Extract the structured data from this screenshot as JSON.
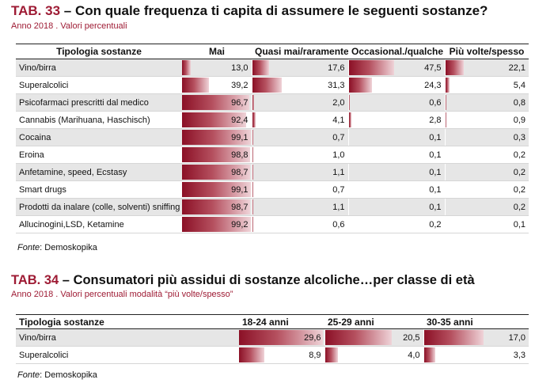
{
  "table1": {
    "code": "TAB. 33",
    "title": " – Con quale frequenza ti capita di assumere le seguenti sostanze?",
    "subtitle": "Anno 2018 . Valori percentuali",
    "headers": [
      "Tipologia sostanze",
      "Mai",
      "Quasi mai/raramente",
      "Occasional./qualche",
      "Più volte/spesso"
    ],
    "rows": [
      {
        "label": "Vino/birra",
        "values": [
          "13,0",
          "17,6",
          "47,5",
          "22,1"
        ],
        "pct": [
          13.0,
          17.6,
          47.5,
          22.1
        ]
      },
      {
        "label": "Superalcolici",
        "values": [
          "39,2",
          "31,3",
          "24,3",
          "5,4"
        ],
        "pct": [
          39.2,
          31.3,
          24.3,
          5.4
        ]
      },
      {
        "label": "Psicofarmaci prescritti dal medico",
        "values": [
          "96,7",
          "2,0",
          "0,6",
          "0,8"
        ],
        "pct": [
          96.7,
          2.0,
          0.6,
          0.8
        ]
      },
      {
        "label": "Cannabis (Marihuana, Haschisch)",
        "values": [
          "92,4",
          "4,1",
          "2,8",
          "0,9"
        ],
        "pct": [
          92.4,
          4.1,
          2.8,
          0.9
        ]
      },
      {
        "label": "Cocaina",
        "values": [
          "99,1",
          "0,7",
          "0,1",
          "0,3"
        ],
        "pct": [
          99.1,
          0.7,
          0.1,
          0.3
        ]
      },
      {
        "label": "Eroina",
        "values": [
          "98,8",
          "1,0",
          "0,1",
          "0,2"
        ],
        "pct": [
          98.8,
          1.0,
          0.1,
          0.2
        ]
      },
      {
        "label": "Anfetamine, speed, Ecstasy",
        "values": [
          "98,7",
          "1,1",
          "0,1",
          "0,2"
        ],
        "pct": [
          98.7,
          1.1,
          0.1,
          0.2
        ]
      },
      {
        "label": "Smart drugs",
        "values": [
          "99,1",
          "0,7",
          "0,1",
          "0,2"
        ],
        "pct": [
          99.1,
          0.7,
          0.1,
          0.2
        ]
      },
      {
        "label": "Prodotti da inalare (colle, solventi) sniffing",
        "values": [
          "98,7",
          "1,1",
          "0,1",
          "0,2"
        ],
        "pct": [
          98.7,
          1.1,
          0.1,
          0.2
        ]
      },
      {
        "label": "Allucinogini,LSD, Ketamine",
        "values": [
          "99,2",
          "0,6",
          "0,2",
          "0,1"
        ],
        "pct": [
          99.2,
          0.6,
          0.2,
          0.1
        ]
      }
    ],
    "source_label": "Fonte",
    "source_text": ": Demoskopika"
  },
  "table2": {
    "code": "TAB. 34",
    "title": " – Consumatori più assidui di sostanze alcoliche…per classe di età",
    "subtitle": "Anno 2018 . Valori percentuali modalità “più volte/spesso”",
    "headers": [
      "Tipologia sostanze",
      "18-24 anni",
      "25-29 anni",
      "30-35 anni"
    ],
    "rows": [
      {
        "label": "Vino/birra",
        "values": [
          "29,6",
          "20,5",
          "17,0"
        ],
        "pct": [
          29.6,
          20.5,
          17.0
        ]
      },
      {
        "label": "Superalcolici",
        "values": [
          "8,9",
          "4,0",
          "3,3"
        ],
        "pct": [
          8.9,
          4.0,
          3.3
        ]
      }
    ],
    "scale_max": 30,
    "source_label": "Fonte",
    "source_text": ": Demoskopika"
  }
}
